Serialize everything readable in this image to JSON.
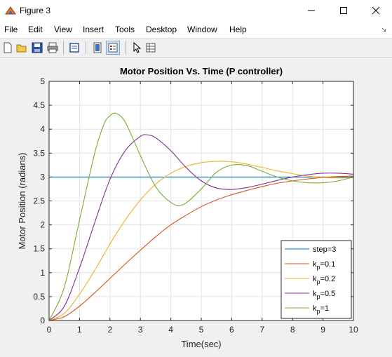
{
  "window": {
    "title": "Figure 3",
    "controls": [
      "minimize-icon",
      "maximize-icon",
      "close-icon"
    ]
  },
  "menu": [
    "File",
    "Edit",
    "View",
    "Insert",
    "Tools",
    "Desktop",
    "Window",
    "Help"
  ],
  "toolbar": {
    "buttons": [
      "new-figure-icon",
      "open-file-icon",
      "save-icon",
      "print-icon",
      "print-preview-icon",
      "colorbar-icon",
      "legend-icon",
      "edit-plot-arrow-icon",
      "property-inspector-icon"
    ],
    "active": "legend-icon"
  },
  "chart_data": {
    "type": "line",
    "title": "Motor Position Vs. Time (P controller)",
    "xlabel": "Time(sec)",
    "ylabel": "Motor Position (radians)",
    "xlim": [
      0,
      10
    ],
    "ylim": [
      0,
      5
    ],
    "xticks": [
      "0",
      "1",
      "2",
      "3",
      "4",
      "5",
      "6",
      "7",
      "8",
      "9",
      "10"
    ],
    "yticks": [
      "0",
      "0.5",
      "1",
      "1.5",
      "2",
      "2.5",
      "3",
      "3.5",
      "4",
      "4.5",
      "5"
    ],
    "grid": true,
    "legend_position": "bottom-right",
    "series": [
      {
        "name": "step=3",
        "legend_main": "step=3",
        "legend_sub": "",
        "legend_tail": "",
        "color": "#0072bd",
        "x": [
          0,
          10
        ],
        "y": [
          3,
          3
        ]
      },
      {
        "name": "kp=0.1",
        "legend_main": "k",
        "legend_sub": "p",
        "legend_tail": "=0.1",
        "color": "#d95319",
        "x": [
          0,
          0.5,
          1,
          1.5,
          2,
          2.5,
          3,
          3.5,
          4,
          4.5,
          5,
          5.5,
          6,
          6.5,
          7,
          7.5,
          8,
          8.5,
          9,
          9.5,
          10
        ],
        "y": [
          0,
          0.08,
          0.3,
          0.58,
          0.88,
          1.18,
          1.47,
          1.75,
          2.0,
          2.2,
          2.38,
          2.52,
          2.63,
          2.72,
          2.8,
          2.87,
          2.92,
          2.96,
          2.99,
          3.01,
          3.02
        ]
      },
      {
        "name": "kp=0.2",
        "legend_main": "k",
        "legend_sub": "p",
        "legend_tail": "=0.2",
        "color": "#edb120",
        "x": [
          0,
          0.5,
          1,
          1.5,
          2,
          2.5,
          3,
          3.5,
          4,
          4.5,
          5,
          5.5,
          6,
          6.5,
          7,
          7.5,
          8,
          8.5,
          9,
          9.5,
          10
        ],
        "y": [
          0,
          0.15,
          0.55,
          1.05,
          1.6,
          2.1,
          2.52,
          2.85,
          3.08,
          3.22,
          3.3,
          3.33,
          3.32,
          3.27,
          3.2,
          3.13,
          3.07,
          3.02,
          2.99,
          2.98,
          2.99
        ]
      },
      {
        "name": "kp=0.5",
        "legend_main": "k",
        "legend_sub": "p",
        "legend_tail": "=0.5",
        "color": "#7e2f8e",
        "x": [
          0,
          0.5,
          1,
          1.5,
          2,
          2.5,
          3,
          3.25,
          3.5,
          4,
          4.5,
          5,
          5.5,
          6,
          6.5,
          7,
          7.5,
          8,
          8.5,
          9,
          9.5,
          10
        ],
        "y": [
          0,
          0.3,
          1.1,
          2.05,
          2.95,
          3.55,
          3.85,
          3.88,
          3.82,
          3.55,
          3.2,
          2.92,
          2.77,
          2.74,
          2.78,
          2.85,
          2.93,
          3.0,
          3.05,
          3.08,
          3.08,
          3.06
        ]
      },
      {
        "name": "kp=1",
        "legend_main": "k",
        "legend_sub": "p",
        "legend_tail": "=1",
        "color": "#77ac30",
        "x": [
          0,
          0.5,
          1,
          1.5,
          1.8,
          2,
          2.2,
          2.5,
          3,
          3.5,
          4,
          4.4,
          5,
          5.5,
          6,
          6.5,
          7,
          7.5,
          8,
          8.5,
          9,
          9.5,
          10
        ],
        "y": [
          0,
          0.7,
          2.1,
          3.5,
          4.1,
          4.28,
          4.33,
          4.15,
          3.45,
          2.8,
          2.47,
          2.42,
          2.75,
          3.1,
          3.25,
          3.24,
          3.12,
          3.0,
          2.92,
          2.88,
          2.88,
          2.92,
          3.0
        ]
      }
    ]
  }
}
